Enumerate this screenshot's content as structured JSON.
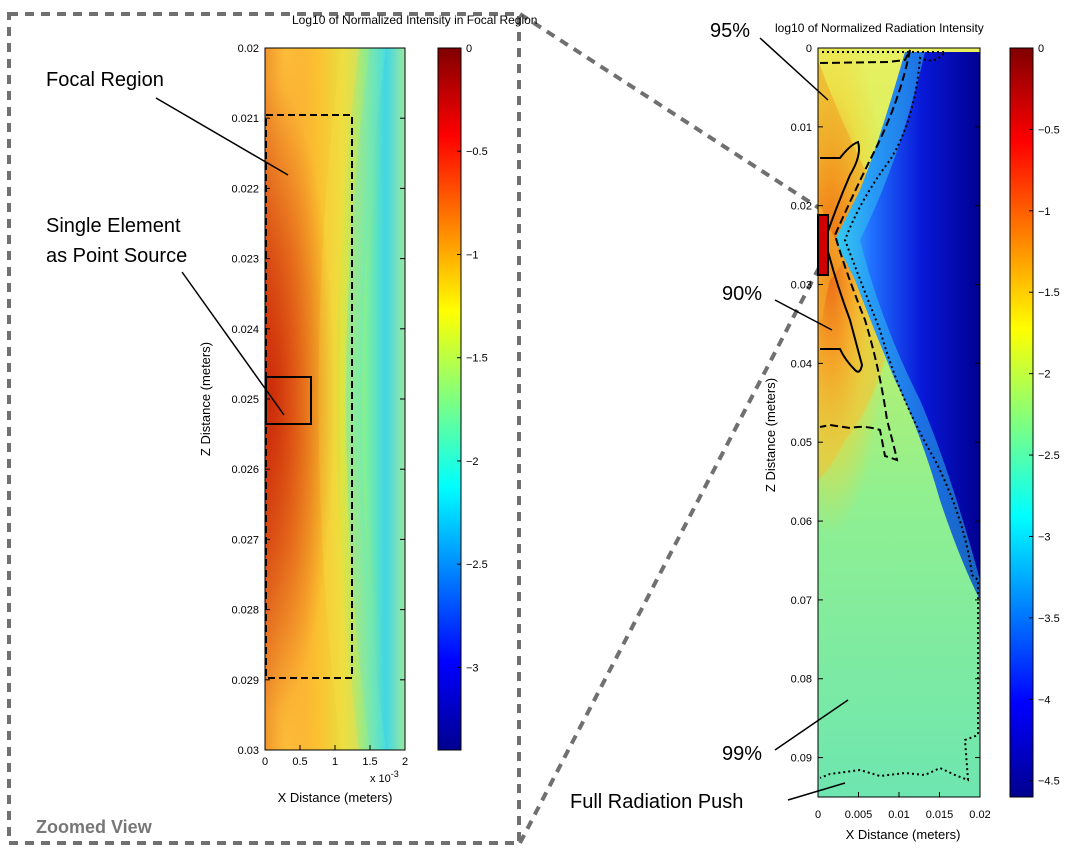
{
  "chart_data": [
    {
      "type": "heatmap",
      "title": "Log10 of Normalized Intensity in Focal Region",
      "xlabel": "X Distance (meters)",
      "ylabel": "Z Distance (meters)",
      "x_exponent_label": "x 10",
      "x_exponent_power": "-3",
      "xlim": [
        0,
        2
      ],
      "ylim": [
        0.02,
        0.03
      ],
      "y_reversed": true,
      "x_ticks": [
        "0",
        "0.5",
        "1",
        "1.5",
        "2"
      ],
      "y_ticks": [
        "0.02",
        "0.021",
        "0.022",
        "0.023",
        "0.024",
        "0.025",
        "0.026",
        "0.027",
        "0.028",
        "0.029",
        "0.03"
      ],
      "colorbar": {
        "range": [
          -3.4,
          0
        ],
        "ticks": [
          "0",
          "−0.5",
          "−1",
          "−1.5",
          "−2",
          "−2.5",
          "−3"
        ]
      },
      "annotations": [
        {
          "text": "Focal Region"
        },
        {
          "text": "Single Element",
          "text2": "as Point Source"
        }
      ],
      "panel_label": "Zoomed View"
    },
    {
      "type": "heatmap",
      "title": "log10 of Normalized Radiation Intensity",
      "xlabel": "X Distance (meters)",
      "ylabel": "Z Distance (meters)",
      "xlim": [
        0,
        0.02
      ],
      "ylim": [
        0,
        0.095
      ],
      "y_reversed": true,
      "x_ticks": [
        "0",
        "0.005",
        "0.01",
        "0.015",
        "0.02"
      ],
      "y_ticks": [
        "0",
        "0.01",
        "0.02",
        "0.03",
        "0.04",
        "0.05",
        "0.06",
        "0.07",
        "0.08",
        "0.09"
      ],
      "colorbar": {
        "range": [
          -4.6,
          0
        ],
        "ticks": [
          "0",
          "−0.5",
          "−1",
          "−1.5",
          "−2",
          "−2.5",
          "−3",
          "−3.5",
          "−4",
          "−4.5"
        ]
      },
      "annotations": [
        {
          "text": "95%"
        },
        {
          "text": "90%"
        },
        {
          "text": "99%"
        },
        {
          "text": "Full Radiation Push"
        }
      ]
    }
  ],
  "colormap": "jet"
}
